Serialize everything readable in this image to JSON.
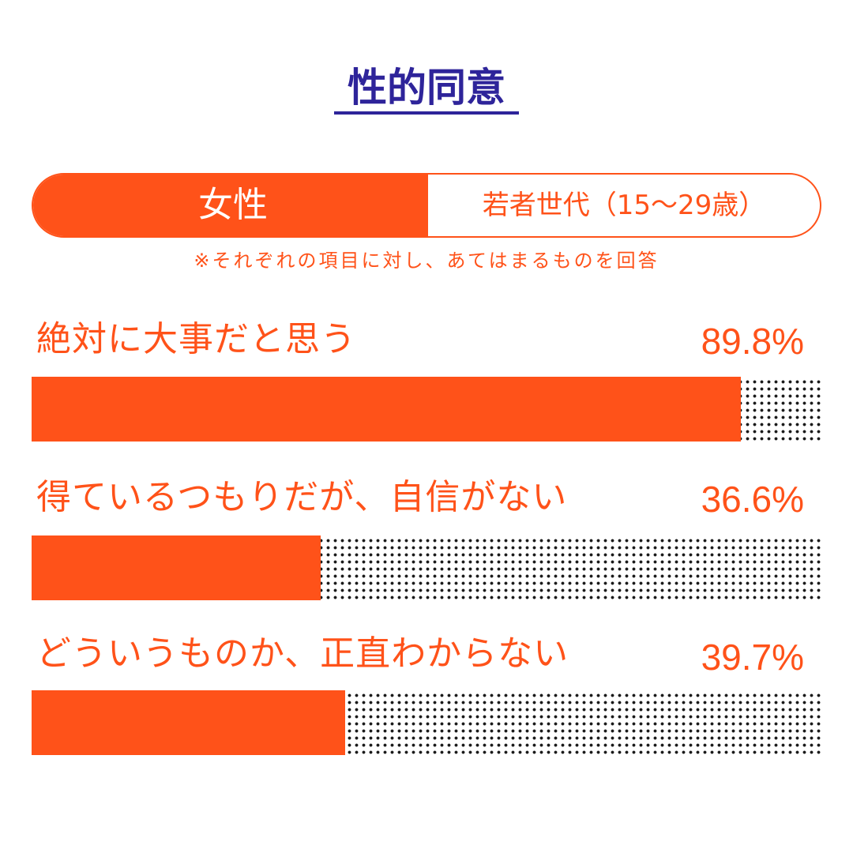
{
  "title": "性的同意",
  "segment": {
    "left_label": "女性",
    "right_label": "若者世代（15～29歳）"
  },
  "note": "※それぞれの項目に対し、あてはまるものを回答",
  "colors": {
    "accent": "#ff5219",
    "title": "#2e249a",
    "dots": "#1a1a1a"
  },
  "chart_data": {
    "type": "bar",
    "orientation": "horizontal",
    "xlim": [
      0,
      100
    ],
    "categories": [
      "絶対に大事だと思う",
      "得ているつもりだが、自信がない",
      "どういうものか、正直わからない"
    ],
    "values": [
      89.8,
      36.6,
      39.7
    ],
    "value_labels": [
      "89.8%",
      "36.6%",
      "39.7%"
    ],
    "unit": "%"
  }
}
